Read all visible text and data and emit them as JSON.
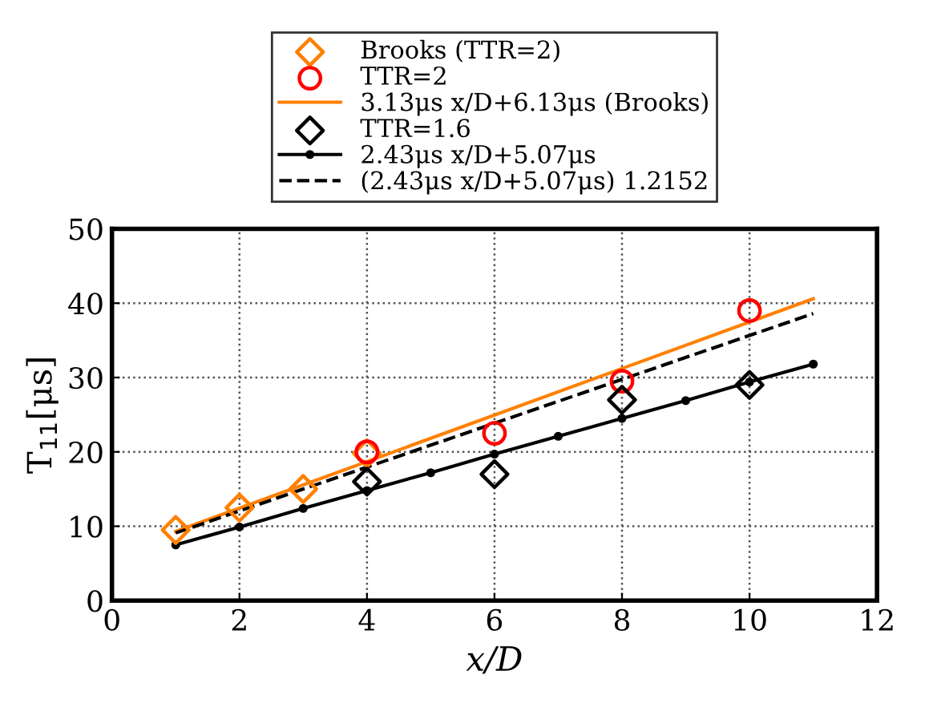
{
  "chart_data": {
    "type": "scatter",
    "xlabel": "x/D",
    "ylabel": "T$_{11}$[μs]",
    "xlim": [
      0,
      12
    ],
    "xticks": [
      0,
      2,
      4,
      6,
      8,
      10,
      12
    ],
    "ylim": [
      0,
      50
    ],
    "yticks": [
      0,
      10,
      20,
      30,
      40,
      50
    ],
    "grid": true,
    "legend": "top",
    "series": [
      {
        "name": "Brooks (TTR=2)",
        "marker": "diamond",
        "color": "#ff8000",
        "x": [
          1,
          2,
          3,
          4
        ],
        "values": [
          9.5,
          12.5,
          15,
          19.8
        ]
      },
      {
        "name": "TTR=2",
        "marker": "circle",
        "color": "#ff0000",
        "x": [
          4,
          6,
          8,
          10
        ],
        "values": [
          20,
          22.5,
          29.5,
          39
        ]
      },
      {
        "name": "3.13μs x/D+6.13μs (Brooks)",
        "type": "line",
        "marker": "none",
        "line_style": "solid",
        "color": "#ff8000",
        "x": [
          1,
          11
        ],
        "values": [
          9.3,
          40.6
        ]
      },
      {
        "name": "TTR=1.6",
        "marker": "diamond",
        "color": "#000000",
        "x": [
          4,
          6,
          8,
          10
        ],
        "values": [
          16,
          17,
          27,
          29
        ]
      },
      {
        "name": "2.43μs x/D+5.07μs",
        "type": "line",
        "marker": "circle",
        "line_style": "solid",
        "color": "#000000",
        "x": [
          1,
          2,
          3,
          4,
          5,
          6,
          7,
          8,
          9,
          10,
          11
        ],
        "values": [
          7.5,
          9.9,
          12.4,
          14.8,
          17.2,
          19.7,
          22.1,
          24.5,
          26.9,
          29.4,
          31.8
        ]
      },
      {
        "name": "(2.43μs x/D+5.07μs) 1.2152",
        "type": "line",
        "marker": "none",
        "line_style": "dashed",
        "color": "#000000",
        "x": [
          1,
          11
        ],
        "values": [
          9.1,
          38.6
        ]
      }
    ]
  }
}
